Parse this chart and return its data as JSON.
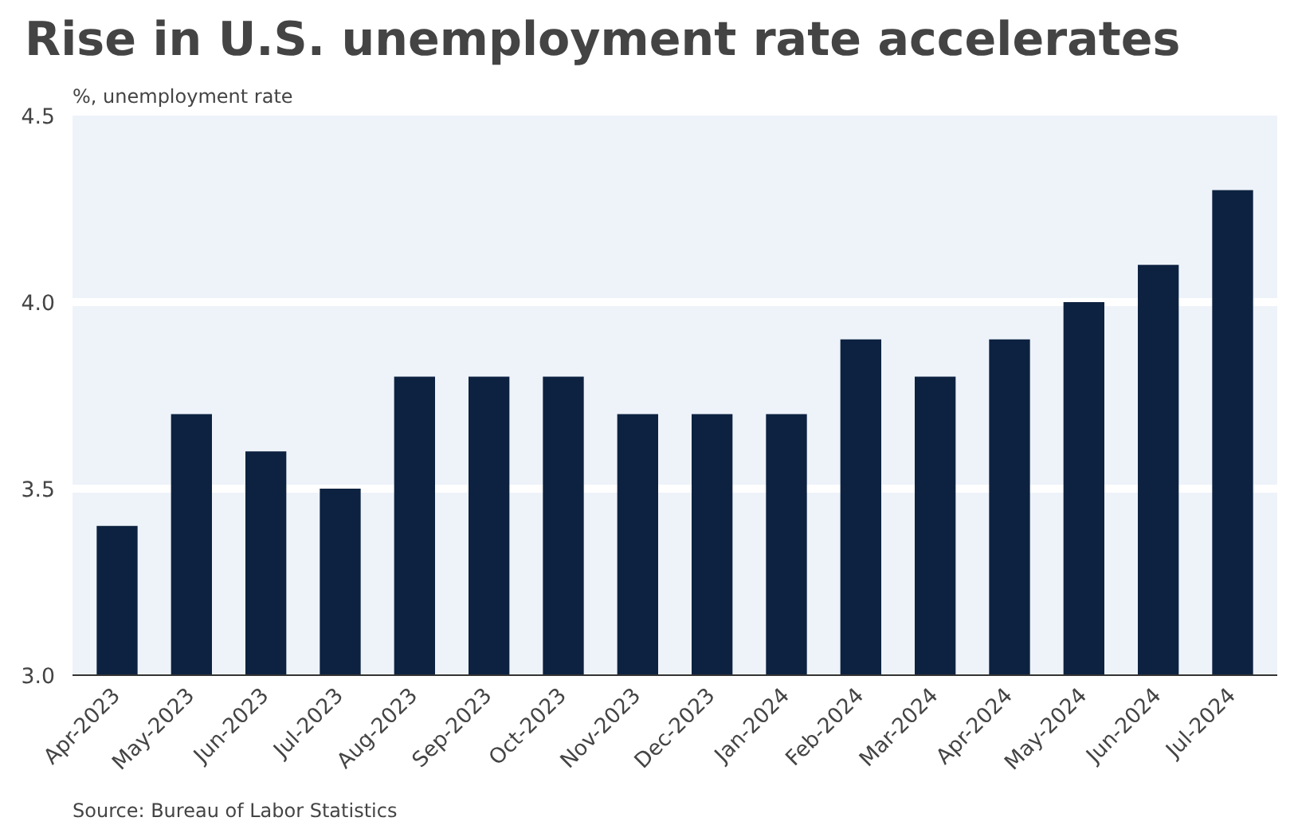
{
  "chart_data": {
    "type": "bar",
    "title": "Rise in U.S. unemployment rate accelerates",
    "ylabel": "%, unemployment rate",
    "categories": [
      "Apr-2023",
      "May-2023",
      "Jun-2023",
      "Jul-2023",
      "Aug-2023",
      "Sep-2023",
      "Oct-2023",
      "Nov-2023",
      "Dec-2023",
      "Jan-2024",
      "Feb-2024",
      "Mar-2024",
      "Apr-2024",
      "May-2024",
      "Jun-2024",
      "Jul-2024"
    ],
    "values": [
      3.4,
      3.7,
      3.6,
      3.5,
      3.8,
      3.8,
      3.8,
      3.7,
      3.7,
      3.7,
      3.9,
      3.8,
      3.9,
      4.0,
      4.1,
      4.3
    ],
    "color": "#0d2240",
    "ylim": [
      3.0,
      4.5
    ],
    "yticks": [
      {
        "value": 3.0,
        "label": "3.0"
      },
      {
        "value": 3.5,
        "label": "3.5"
      },
      {
        "value": 4.0,
        "label": "4.0"
      },
      {
        "value": 4.5,
        "label": "4.5"
      }
    ],
    "grid": "y",
    "annotations": [
      "Source: Bureau of Labor Statistics"
    ]
  }
}
